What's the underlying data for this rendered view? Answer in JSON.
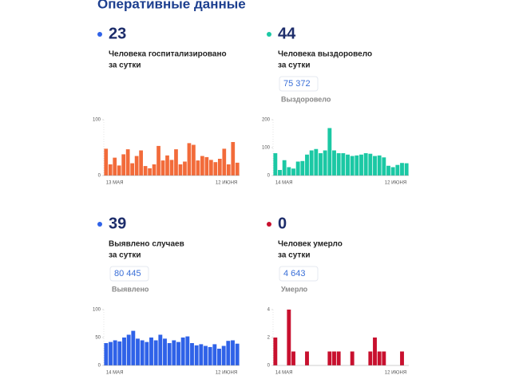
{
  "title": "Оперативные данные",
  "chart_data": [
    {
      "type": "bar",
      "headline": 23,
      "caption": [
        "Человека госпитализировано",
        "за сутки"
      ],
      "categories": [
        "13 МАЯ",
        null,
        null,
        null,
        null,
        null,
        null,
        null,
        null,
        null,
        null,
        null,
        null,
        null,
        null,
        null,
        null,
        null,
        null,
        null,
        null,
        null,
        null,
        null,
        null,
        null,
        null,
        null,
        null,
        null,
        "12 ИЮНЯ"
      ],
      "values": [
        48,
        20,
        32,
        18,
        38,
        47,
        22,
        35,
        45,
        17,
        13,
        20,
        53,
        27,
        36,
        28,
        47,
        20,
        25,
        58,
        55,
        27,
        35,
        33,
        28,
        24,
        30,
        48,
        20,
        60,
        23
      ],
      "color": "#f26b3a",
      "dot_color": "#2f62e8",
      "ylim": [
        0,
        100
      ],
      "yticks": [
        0,
        100
      ]
    },
    {
      "type": "bar",
      "headline": 44,
      "caption": [
        "Человека выздоровело",
        "за сутки"
      ],
      "total": "75 372",
      "total_label": "Выздоровело",
      "categories": [
        "14 МАЯ",
        null,
        null,
        null,
        null,
        null,
        null,
        null,
        null,
        null,
        null,
        null,
        null,
        null,
        null,
        null,
        null,
        null,
        null,
        null,
        null,
        null,
        null,
        null,
        null,
        null,
        null,
        null,
        null,
        "12 ИЮНЯ"
      ],
      "values": [
        80,
        20,
        55,
        30,
        25,
        50,
        52,
        75,
        90,
        95,
        80,
        90,
        170,
        90,
        80,
        80,
        75,
        70,
        72,
        75,
        80,
        78,
        70,
        72,
        65,
        35,
        30,
        38,
        45,
        44
      ],
      "color": "#1bc8a4",
      "dot_color": "#1bc8a4",
      "ylim": [
        0,
        200
      ],
      "yticks": [
        0,
        100,
        200
      ]
    },
    {
      "type": "bar",
      "headline": 39,
      "caption": [
        "Выявлено случаев",
        "за сутки"
      ],
      "total": "80 445",
      "total_label": "Выявлено",
      "categories": [
        "14 МАЯ",
        null,
        null,
        null,
        null,
        null,
        null,
        null,
        null,
        null,
        null,
        null,
        null,
        null,
        null,
        null,
        null,
        null,
        null,
        null,
        null,
        null,
        null,
        null,
        null,
        null,
        null,
        null,
        null,
        "12 ИЮНЯ"
      ],
      "values": [
        40,
        42,
        45,
        43,
        50,
        55,
        62,
        48,
        45,
        42,
        50,
        45,
        55,
        48,
        40,
        45,
        42,
        50,
        52,
        40,
        36,
        38,
        35,
        33,
        38,
        30,
        35,
        44,
        45,
        39
      ],
      "color": "#2f62e8",
      "dot_color": "#2f62e8",
      "ylim": [
        0,
        100
      ],
      "yticks": [
        0,
        50,
        100
      ]
    },
    {
      "type": "bar",
      "headline": 0,
      "caption": [
        "Человек умерло",
        "за сутки"
      ],
      "total": "4 643",
      "total_label": "Умерло",
      "categories": [
        "14 МАЯ",
        null,
        null,
        null,
        null,
        null,
        null,
        null,
        null,
        null,
        null,
        null,
        null,
        null,
        null,
        null,
        null,
        null,
        null,
        null,
        null,
        null,
        null,
        null,
        null,
        null,
        null,
        null,
        null,
        "12 ИЮНЯ"
      ],
      "values": [
        2,
        0,
        0,
        4,
        1,
        0,
        0,
        1,
        0,
        0,
        0,
        0,
        1,
        1,
        1,
        0,
        0,
        1,
        0,
        0,
        0,
        1,
        2,
        1,
        1,
        0,
        0,
        0,
        1,
        0
      ],
      "color": "#c8102e",
      "dot_color": "#c8102e",
      "ylim": [
        0,
        4
      ],
      "yticks": [
        0,
        2,
        4
      ]
    }
  ]
}
